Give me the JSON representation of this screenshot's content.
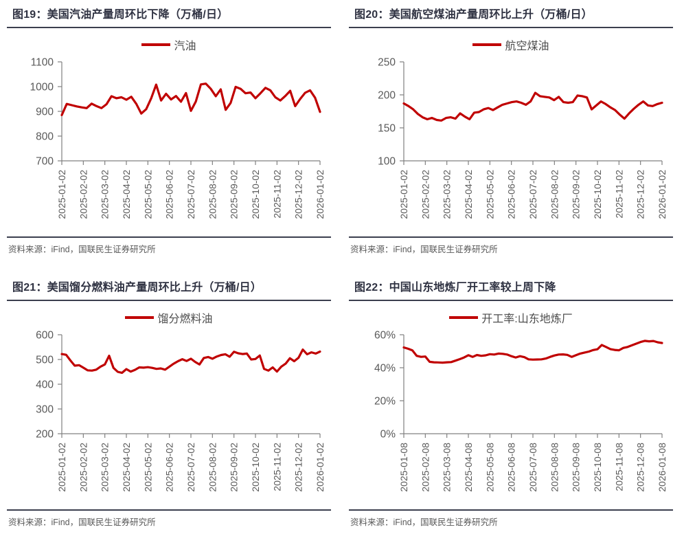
{
  "colors": {
    "line_red": "#C00000",
    "axis_line": "#808080",
    "tick_label": "#595959",
    "title_text": "#2F3242",
    "divider": "#3B3E4E",
    "source_text": "#595959"
  },
  "chart_data": [
    {
      "type": "line",
      "title": "图19：美国汽油产量周环比下降（万桶/日）",
      "legend_position": "top-center",
      "grid": false,
      "ylim": [
        700,
        1100
      ],
      "y_tick_values": [
        1100,
        1000,
        900,
        800,
        700
      ],
      "y_tick_labels": [
        "1100",
        "1000",
        "900",
        "800",
        "700"
      ],
      "x_tick_labels": [
        "2025-01-02",
        "2025-02-02",
        "2025-03-02",
        "2025-04-02",
        "2025-05-02",
        "2025-06-02",
        "2025-07-02",
        "2025-08-02",
        "2025-09-02",
        "2025-10-02",
        "2025-11-02",
        "2025-12-02",
        "2026-01-02"
      ],
      "series": [
        {
          "name": "汽油",
          "color": "#C00000",
          "values": [
            885,
            930,
            925,
            920,
            916,
            913,
            931,
            921,
            913,
            929,
            961,
            953,
            957,
            947,
            959,
            930,
            891,
            909,
            953,
            1008,
            944,
            971,
            948,
            962,
            939,
            974,
            902,
            940,
            1009,
            1012,
            991,
            961,
            989,
            906,
            934,
            999,
            991,
            973,
            976,
            953,
            973,
            995,
            985,
            957,
            944,
            962,
            983,
            921,
            950,
            975,
            985,
            955,
            898
          ]
        }
      ],
      "source": "资料来源：iFind，国联民生证券研究所"
    },
    {
      "type": "line",
      "title": "图20：美国航空煤油产量周环比上升（万桶/日）",
      "legend_position": "top-center",
      "grid": false,
      "ylim": [
        100,
        250
      ],
      "y_tick_values": [
        250,
        200,
        150,
        100
      ],
      "y_tick_labels": [
        "250",
        "200",
        "150",
        "100"
      ],
      "x_tick_labels": [
        "2025-01-02",
        "2025-02-02",
        "2025-03-02",
        "2025-04-02",
        "2025-05-02",
        "2025-06-02",
        "2025-07-02",
        "2025-08-02",
        "2025-09-02",
        "2025-10-02",
        "2025-11-02",
        "2025-12-02",
        "2026-01-02"
      ],
      "series": [
        {
          "name": "航空煤油",
          "color": "#C00000",
          "values": [
            187,
            183,
            178,
            171,
            166,
            163,
            165,
            162,
            161,
            165,
            166,
            164,
            172,
            167,
            163,
            173,
            174,
            178,
            180,
            177,
            181,
            185,
            187,
            189,
            190,
            188,
            185,
            190,
            203,
            198,
            197,
            196,
            192,
            197,
            189,
            188,
            189,
            199,
            198,
            196,
            178,
            184,
            190,
            186,
            181,
            177,
            170,
            164,
            172,
            179,
            185,
            190,
            184,
            183,
            186,
            188
          ]
        }
      ],
      "source": "资料来源：iFind，国联民生证券研究所"
    },
    {
      "type": "line",
      "title": "图21：美国馏分燃料油产量周环比上升（万桶/日）",
      "legend_position": "top-center",
      "grid": false,
      "ylim": [
        200,
        600
      ],
      "y_tick_values": [
        600,
        500,
        400,
        300,
        200
      ],
      "y_tick_labels": [
        "600",
        "500",
        "400",
        "300",
        "200"
      ],
      "x_tick_labels": [
        "2025-01-02",
        "2025-02-02",
        "2025-03-02",
        "2025-04-02",
        "2025-05-02",
        "2025-06-02",
        "2025-07-02",
        "2025-08-02",
        "2025-09-02",
        "2025-10-02",
        "2025-11-02",
        "2025-12-02",
        "2026-01-02"
      ],
      "series": [
        {
          "name": "馏分燃料油",
          "color": "#C00000",
          "values": [
            522,
            519,
            496,
            475,
            477,
            467,
            456,
            455,
            459,
            471,
            480,
            515,
            466,
            450,
            446,
            461,
            451,
            458,
            468,
            467,
            469,
            466,
            462,
            464,
            459,
            471,
            483,
            493,
            501,
            494,
            503,
            490,
            480,
            506,
            510,
            503,
            512,
            518,
            521,
            511,
            531,
            525,
            522,
            524,
            500,
            502,
            516,
            462,
            455,
            468,
            451,
            471,
            483,
            505,
            493,
            507,
            540,
            521,
            529,
            524,
            532
          ]
        }
      ],
      "source": "资料来源：iFind，国联民生证券研究所"
    },
    {
      "type": "line",
      "title": "图22：中国山东地炼厂开工率较上周下降",
      "legend_position": "top-center",
      "grid": false,
      "ylim": [
        0,
        60
      ],
      "y_tick_values": [
        60,
        40,
        20,
        0
      ],
      "y_tick_labels": [
        "60%",
        "40%",
        "20%",
        "0%"
      ],
      "x_tick_labels": [
        "2025-01-08",
        "2025-02-08",
        "2025-03-08",
        "2025-04-08",
        "2025-05-08",
        "2025-06-08",
        "2025-07-08",
        "2025-08-08",
        "2025-09-08",
        "2025-10-08",
        "2025-11-08",
        "2025-12-08",
        "2026-01-08"
      ],
      "series": [
        {
          "name": "开工率:山东地炼厂",
          "color": "#C00000",
          "values": [
            52.3,
            51.5,
            50.5,
            47.2,
            46.6,
            46.8,
            43.6,
            43.3,
            43.2,
            43.1,
            43.3,
            43.4,
            44.3,
            45.2,
            46.2,
            47.6,
            46.6,
            47.7,
            47.2,
            47.5,
            48.2,
            48.0,
            48.6,
            48.4,
            48.0,
            47.0,
            46.2,
            47.0,
            46.4,
            45.1,
            44.9,
            45.0,
            45.1,
            45.6,
            46.6,
            47.4,
            48.0,
            48.1,
            47.8,
            46.6,
            47.6,
            48.6,
            49.2,
            49.8,
            50.7,
            51.2,
            53.8,
            52.6,
            51.3,
            50.8,
            50.6,
            52.0,
            52.6,
            53.6,
            54.6,
            55.6,
            56.3,
            56.0,
            56.2,
            55.4,
            55.0
          ]
        }
      ],
      "source": "资料来源：iFind，国联民生证券研究所"
    }
  ]
}
